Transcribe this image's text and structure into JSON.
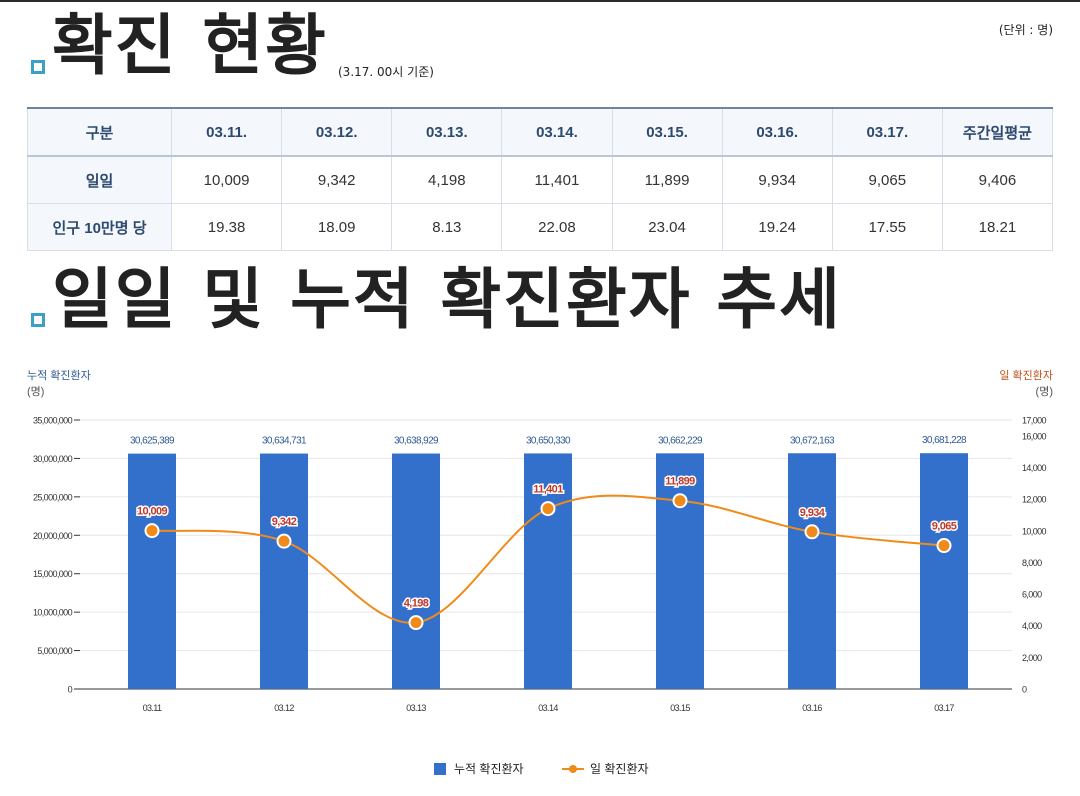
{
  "header": {
    "title1": "확진 현황",
    "subtitle1": "(3.17. 00시 기준)",
    "unit_note": "(단위 : 명)",
    "title2": "일일 및 누적 확진환자 추세"
  },
  "table": {
    "headers": [
      "구분",
      "03.11.",
      "03.12.",
      "03.13.",
      "03.14.",
      "03.15.",
      "03.16.",
      "03.17.",
      "주간일평균"
    ],
    "rows": [
      {
        "label": "일일",
        "cells": [
          "10,009",
          "9,342",
          "4,198",
          "11,401",
          "11,899",
          "9,934",
          "9,065",
          "9,406"
        ]
      },
      {
        "label": "인구 10만명 당",
        "cells": [
          "19.38",
          "18.09",
          "8.13",
          "22.08",
          "23.04",
          "19.24",
          "17.55",
          "18.21"
        ]
      }
    ]
  },
  "chart_data": {
    "type": "bar",
    "categories": [
      "03.11",
      "03.12",
      "03.13",
      "03.14",
      "03.15",
      "03.16",
      "03.17"
    ],
    "left_axis": {
      "title": "누적 확진환자",
      "unit": "(명)",
      "range": [
        0,
        35000000
      ],
      "ticks": [
        "0",
        "5,000,000",
        "10,000,000",
        "15,000,000",
        "20,000,000",
        "25,000,000",
        "30,000,000",
        "35,000,000"
      ]
    },
    "right_axis": {
      "title": "일 확진환자",
      "unit": "(명)",
      "range": [
        0,
        17000
      ],
      "ticks": [
        "0",
        "2,000",
        "4,000",
        "6,000",
        "8,000",
        "10,000",
        "12,000",
        "14,000",
        "16,000",
        "17,000"
      ]
    },
    "series": [
      {
        "name": "누적 확진환자",
        "type": "bar",
        "axis": "left",
        "color": "#3370cc",
        "values": [
          30625389,
          30634731,
          30638929,
          30650330,
          30662229,
          30672163,
          30681228
        ],
        "labels": [
          "30,625,389",
          "30,634,731",
          "30,638,929",
          "30,650,330",
          "30,662,229",
          "30,672,163",
          "30,681,228"
        ]
      },
      {
        "name": "일 확진환자",
        "type": "line",
        "axis": "right",
        "color": "#f08b1a",
        "values": [
          10009,
          9342,
          4198,
          11401,
          11899,
          9934,
          9065
        ],
        "labels": [
          "10,009",
          "9,342",
          "4,198",
          "11,401",
          "11,899",
          "9,934",
          "9,065"
        ]
      }
    ],
    "grid": true,
    "legend_position": "bottom-center"
  }
}
